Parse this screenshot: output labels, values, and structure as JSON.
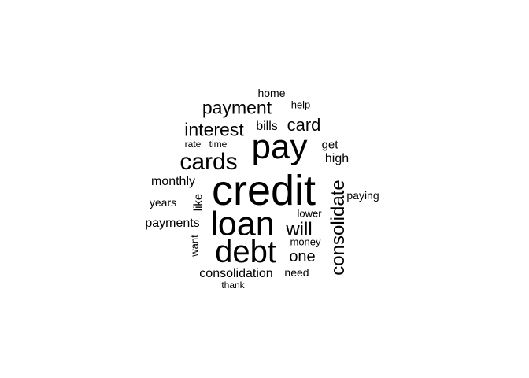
{
  "word_cloud": {
    "text_color": "#000000",
    "background_color": "#ffffff",
    "words": [
      {
        "key": "credit",
        "text": "credit",
        "orientation": "horizontal"
      },
      {
        "key": "pay",
        "text": "pay",
        "orientation": "horizontal"
      },
      {
        "key": "loan",
        "text": "loan",
        "orientation": "horizontal"
      },
      {
        "key": "debt",
        "text": "debt",
        "orientation": "horizontal"
      },
      {
        "key": "cards",
        "text": "cards",
        "orientation": "horizontal"
      },
      {
        "key": "consolidate",
        "text": "consolidate",
        "orientation": "vertical"
      },
      {
        "key": "payment",
        "text": "payment",
        "orientation": "horizontal"
      },
      {
        "key": "interest",
        "text": "interest",
        "orientation": "horizontal"
      },
      {
        "key": "will",
        "text": "will",
        "orientation": "horizontal"
      },
      {
        "key": "card",
        "text": "card",
        "orientation": "horizontal"
      },
      {
        "key": "one",
        "text": "one",
        "orientation": "horizontal"
      },
      {
        "key": "consolidation",
        "text": "consolidation",
        "orientation": "horizontal"
      },
      {
        "key": "monthly",
        "text": "monthly",
        "orientation": "horizontal"
      },
      {
        "key": "payments",
        "text": "payments",
        "orientation": "horizontal"
      },
      {
        "key": "bills",
        "text": "bills",
        "orientation": "horizontal"
      },
      {
        "key": "high",
        "text": "high",
        "orientation": "horizontal"
      },
      {
        "key": "get",
        "text": "get",
        "orientation": "horizontal"
      },
      {
        "key": "home",
        "text": "home",
        "orientation": "horizontal"
      },
      {
        "key": "years",
        "text": "years",
        "orientation": "horizontal"
      },
      {
        "key": "paying",
        "text": "paying",
        "orientation": "horizontal"
      },
      {
        "key": "like",
        "text": "like",
        "orientation": "vertical"
      },
      {
        "key": "need",
        "text": "need",
        "orientation": "horizontal"
      },
      {
        "key": "help",
        "text": "help",
        "orientation": "horizontal"
      },
      {
        "key": "want",
        "text": "want",
        "orientation": "vertical"
      },
      {
        "key": "money",
        "text": "money",
        "orientation": "horizontal"
      },
      {
        "key": "rate",
        "text": "rate",
        "orientation": "horizontal"
      },
      {
        "key": "time",
        "text": "time",
        "orientation": "horizontal"
      },
      {
        "key": "lower",
        "text": "lower",
        "orientation": "horizontal"
      },
      {
        "key": "thank",
        "text": "thank",
        "orientation": "horizontal"
      }
    ]
  }
}
